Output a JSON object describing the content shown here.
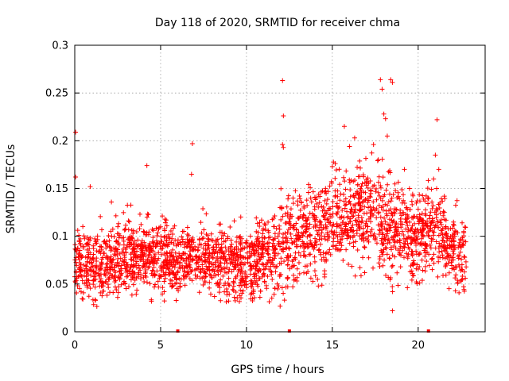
{
  "chart_data": {
    "type": "scatter",
    "title": "Day 118 of 2020, SRMTID for receiver chma",
    "xlabel": "GPS time / hours",
    "ylabel": "SRMTID / TECUs",
    "xlim": [
      0,
      23.9
    ],
    "ylim": [
      0,
      0.3
    ],
    "xticks": [
      0,
      5,
      10,
      15,
      20
    ],
    "xtick_labels": [
      "0",
      "5",
      "10",
      "15",
      "20"
    ],
    "yticks": [
      0,
      0.05,
      0.1,
      0.15,
      0.2,
      0.25,
      0.3
    ],
    "ytick_labels": [
      "0",
      "0.05",
      "0.1",
      "0.15",
      "0.2",
      "0.25",
      "0.3"
    ],
    "grid": true,
    "marker": "+",
    "color": "#ff0000",
    "series": [
      {
        "name": "chma",
        "trend": [
          [
            0.0,
            0.075
          ],
          [
            1.0,
            0.07
          ],
          [
            2.0,
            0.072
          ],
          [
            3.0,
            0.08
          ],
          [
            4.0,
            0.082
          ],
          [
            5.0,
            0.078
          ],
          [
            6.0,
            0.072
          ],
          [
            7.0,
            0.08
          ],
          [
            8.0,
            0.075
          ],
          [
            9.0,
            0.07
          ],
          [
            10.0,
            0.068
          ],
          [
            11.0,
            0.08
          ],
          [
            12.0,
            0.09
          ],
          [
            13.0,
            0.1
          ],
          [
            14.0,
            0.105
          ],
          [
            15.0,
            0.115
          ],
          [
            16.0,
            0.12
          ],
          [
            17.0,
            0.125
          ],
          [
            18.0,
            0.115
          ],
          [
            19.0,
            0.105
          ],
          [
            20.0,
            0.1
          ],
          [
            21.0,
            0.11
          ],
          [
            22.0,
            0.08
          ],
          [
            22.8,
            0.075
          ]
        ],
        "spread": [
          [
            0.0,
            0.026
          ],
          [
            5.0,
            0.024
          ],
          [
            10.0,
            0.024
          ],
          [
            12.0,
            0.03
          ],
          [
            15.0,
            0.034
          ],
          [
            18.0,
            0.036
          ],
          [
            20.0,
            0.03
          ],
          [
            22.8,
            0.026
          ]
        ],
        "outliers": [
          [
            0.05,
            0.209
          ],
          [
            0.05,
            0.162
          ],
          [
            0.9,
            0.152
          ],
          [
            4.2,
            0.174
          ],
          [
            6.8,
            0.165
          ],
          [
            6.85,
            0.197
          ],
          [
            12.1,
            0.263
          ],
          [
            12.15,
            0.226
          ],
          [
            12.1,
            0.196
          ],
          [
            12.15,
            0.193
          ],
          [
            15.0,
            0.173
          ],
          [
            15.7,
            0.215
          ],
          [
            16.0,
            0.194
          ],
          [
            16.3,
            0.203
          ],
          [
            17.4,
            0.196
          ],
          [
            17.8,
            0.264
          ],
          [
            17.9,
            0.254
          ],
          [
            18.0,
            0.228
          ],
          [
            18.1,
            0.223
          ],
          [
            18.4,
            0.264
          ],
          [
            18.5,
            0.261
          ],
          [
            18.2,
            0.205
          ],
          [
            21.1,
            0.222
          ],
          [
            21.0,
            0.185
          ],
          [
            20.9,
            0.16
          ],
          [
            19.2,
            0.17
          ],
          [
            18.5,
            0.022
          ],
          [
            21.2,
            0.17
          ]
        ],
        "zeros": [
          6.0,
          12.5,
          20.6
        ],
        "x_range": [
          0.0,
          22.8
        ],
        "point_count": 2600
      }
    ]
  }
}
